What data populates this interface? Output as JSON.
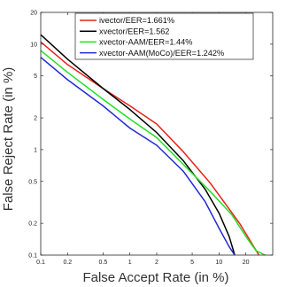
{
  "chart_data": {
    "type": "line",
    "title": "",
    "xlabel": "False Accept Rate (in %)",
    "ylabel": "False Reject Rate (in %)",
    "xscale": "log",
    "yscale": "log",
    "xlim": [
      0.1,
      40
    ],
    "ylim": [
      0.1,
      20
    ],
    "x_ticks": [
      0.1,
      0.2,
      0.5,
      1,
      2,
      5,
      10,
      20
    ],
    "x_tick_labels": [
      "0.1",
      "0.2",
      "0.5",
      "1",
      "2",
      "5",
      "10",
      "20"
    ],
    "y_ticks": [
      0.1,
      0.2,
      0.5,
      1,
      2,
      5,
      10,
      20
    ],
    "y_tick_labels": [
      "0.1",
      "0.2",
      "0.5",
      "1",
      "2",
      "5",
      "10",
      "20"
    ],
    "grid": false,
    "legend_position": "top-right",
    "series": [
      {
        "name": "ivector/EER=1.661%",
        "color": "#e8211b",
        "x": [
          0.1,
          0.2,
          0.5,
          1,
          2,
          4,
          8,
          12,
          17,
          22,
          28
        ],
        "y": [
          10.5,
          6.4,
          3.8,
          2.6,
          1.75,
          0.95,
          0.48,
          0.3,
          0.2,
          0.14,
          0.1
        ]
      },
      {
        "name": "xvector/EER=1.562",
        "color": "#000000",
        "x": [
          0.1,
          0.2,
          0.5,
          1,
          2,
          4,
          7,
          10,
          13,
          15
        ],
        "y": [
          12.3,
          7.2,
          3.8,
          2.4,
          1.45,
          0.78,
          0.42,
          0.25,
          0.15,
          0.1
        ]
      },
      {
        "name": "xvector-AAM/EER=1.44%",
        "color": "#22e022",
        "x": [
          0.1,
          0.2,
          0.5,
          1,
          2,
          4,
          8,
          14,
          20,
          26,
          33
        ],
        "y": [
          8.7,
          5.4,
          3.0,
          1.95,
          1.3,
          0.72,
          0.4,
          0.24,
          0.15,
          0.11,
          0.1
        ]
      },
      {
        "name": "xvector-AAM(MoCo)/EER=1.242%",
        "color": "#1f2ad6",
        "x": [
          0.1,
          0.2,
          0.5,
          1,
          2,
          4,
          7,
          10,
          13,
          15
        ],
        "y": [
          7.5,
          4.6,
          2.6,
          1.6,
          1.1,
          0.62,
          0.32,
          0.18,
          0.12,
          0.1
        ]
      }
    ]
  }
}
